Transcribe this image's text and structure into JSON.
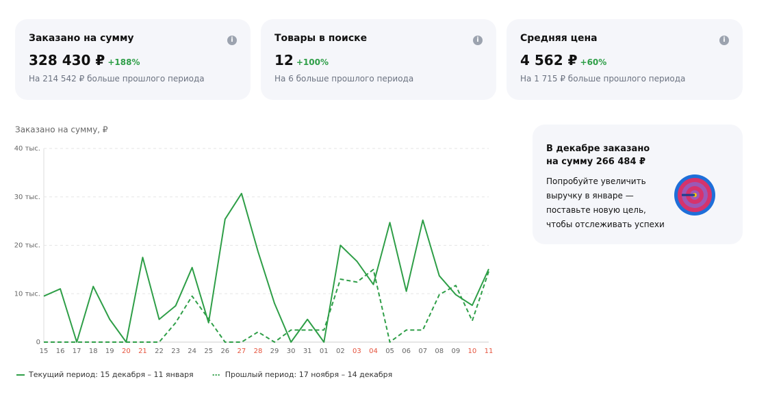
{
  "cards": [
    {
      "title": "Заказано на сумму",
      "value": "328 430 ₽",
      "delta": "+188%",
      "note": "На 214 542 ₽ больше прошлого периода"
    },
    {
      "title": "Товары в поиске",
      "value": "12",
      "delta": "+100%",
      "note": "На 6 больше прошлого периода"
    },
    {
      "title": "Средняя цена",
      "value": "4 562 ₽",
      "delta": "+60%",
      "note": "На 1 715 ₽ больше прошлого периода"
    }
  ],
  "side_card": {
    "title_lines": [
      "В декабре заказано",
      "на сумму 266 484 ₽"
    ],
    "text_lines": [
      "Попробуйте увеличить",
      "выручку в январе —",
      "поставьте новую цель,",
      "чтобы отслеживать успехи"
    ]
  },
  "chart_data": {
    "type": "line",
    "title": "Заказано на сумму, ₽",
    "categories": [
      "15",
      "16",
      "17",
      "18",
      "19",
      "20",
      "21",
      "22",
      "23",
      "24",
      "25",
      "26",
      "27",
      "28",
      "29",
      "30",
      "31",
      "01",
      "02",
      "03",
      "04",
      "05",
      "06",
      "07",
      "08",
      "09",
      "10",
      "11"
    ],
    "category_colors": [
      "#666",
      "#666",
      "#666",
      "#666",
      "#666",
      "#e5533d",
      "#e5533d",
      "#666",
      "#666",
      "#666",
      "#666",
      "#666",
      "#e5533d",
      "#e5533d",
      "#666",
      "#666",
      "#666",
      "#666",
      "#666",
      "#e5533d",
      "#e5533d",
      "#666",
      "#666",
      "#666",
      "#666",
      "#666",
      "#e5533d",
      "#e5533d"
    ],
    "series": [
      {
        "name": "Текущий период: 15 декабря – 11 января",
        "color": "#2e9e47",
        "dashed": false,
        "values": [
          9500,
          11000,
          0,
          11500,
          4700,
          0,
          17500,
          4700,
          7500,
          15400,
          4000,
          25400,
          30700,
          18700,
          8000,
          0,
          4700,
          0,
          20000,
          16700,
          11900,
          24700,
          10500,
          25200,
          13700,
          9800,
          7600,
          15100
        ]
      },
      {
        "name": "Прошлый период: 17 ноября – 14 декабря",
        "color": "#2e9e47",
        "dashed": true,
        "values": [
          0,
          0,
          0,
          0,
          0,
          0,
          0,
          0,
          4000,
          9500,
          4800,
          0,
          0,
          2100,
          0,
          2500,
          2500,
          2500,
          13000,
          12400,
          15000,
          0,
          2500,
          2500,
          9800,
          11700,
          4400,
          14600
        ]
      }
    ],
    "ylim": [
      0,
      40000
    ],
    "yticks": [
      {
        "value": 0,
        "label": "0"
      },
      {
        "value": 10000,
        "label": "10 тыс."
      },
      {
        "value": 20000,
        "label": "20 тыс."
      },
      {
        "value": 30000,
        "label": "30 тыс."
      },
      {
        "value": 40000,
        "label": "40 тыс."
      }
    ],
    "grid": true
  }
}
